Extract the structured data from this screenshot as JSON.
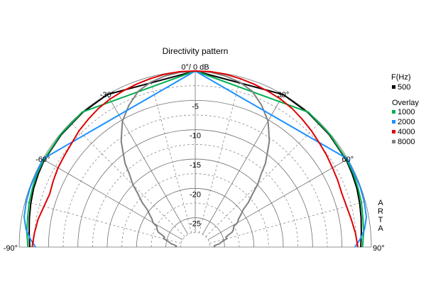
{
  "chart_data": {
    "type": "polar",
    "title": "Directivity pattern",
    "center_label": "0°/ 0 dB",
    "angle_range_deg": [
      -90,
      90
    ],
    "radial_range_db": [
      -30,
      0
    ],
    "angle_labels": [
      {
        "angle": -90,
        "text": "-90°"
      },
      {
        "angle": -60,
        "text": "-60°"
      },
      {
        "angle": -30,
        "text": "-30°"
      },
      {
        "angle": 30,
        "text": "30°"
      },
      {
        "angle": 60,
        "text": "60°"
      },
      {
        "angle": 90,
        "text": "90°"
      }
    ],
    "radial_labels": [
      {
        "db": -5,
        "text": "-5"
      },
      {
        "db": -10,
        "text": "-10"
      },
      {
        "db": -15,
        "text": "-15"
      },
      {
        "db": -20,
        "text": "-20"
      },
      {
        "db": -25,
        "text": "-25"
      }
    ],
    "legend": {
      "header": "F(Hz)",
      "overlay_label": "Overlay",
      "main": {
        "name": "500",
        "color": "#000000"
      },
      "overlays": [
        {
          "name": "1000",
          "color": "#00b050"
        },
        {
          "name": "2000",
          "color": "#1e90ff"
        },
        {
          "name": "4000",
          "color": "#e00000"
        },
        {
          "name": "8000",
          "color": "#808080"
        }
      ]
    },
    "watermark": [
      "A",
      "R",
      "T",
      "A"
    ],
    "series": [
      {
        "name": "500",
        "color": "#000000",
        "points": [
          [
            -90,
            -1.8
          ],
          [
            -85,
            -1.6
          ],
          [
            -80,
            -1.3
          ],
          [
            -75,
            -1.0
          ],
          [
            -70,
            -0.7
          ],
          [
            -65,
            -0.5
          ],
          [
            -60,
            -0.3
          ],
          [
            -50,
            -0.2
          ],
          [
            -40,
            -0.1
          ],
          [
            -30,
            0
          ],
          [
            0,
            0
          ],
          [
            30,
            0
          ],
          [
            40,
            -0.1
          ],
          [
            50,
            -0.2
          ],
          [
            60,
            -0.3
          ],
          [
            65,
            -0.5
          ],
          [
            70,
            -0.7
          ],
          [
            75,
            -1.0
          ],
          [
            80,
            -1.3
          ],
          [
            85,
            -1.6
          ],
          [
            90,
            -1.8
          ]
        ]
      },
      {
        "name": "1000",
        "color": "#00b050",
        "points": [
          [
            -90,
            -1.5
          ],
          [
            -85,
            -1.2
          ],
          [
            -80,
            -1.0
          ],
          [
            -75,
            -0.7
          ],
          [
            -70,
            -0.5
          ],
          [
            -65,
            -0.3
          ],
          [
            -60,
            -0.2
          ],
          [
            -50,
            -0.1
          ],
          [
            -40,
            0
          ],
          [
            0,
            0
          ],
          [
            40,
            0
          ],
          [
            50,
            -0.1
          ],
          [
            60,
            -0.2
          ],
          [
            65,
            -0.3
          ],
          [
            70,
            -0.5
          ],
          [
            75,
            -0.7
          ],
          [
            80,
            -1.0
          ],
          [
            85,
            -1.2
          ],
          [
            90,
            -1.5
          ]
        ]
      },
      {
        "name": "2000",
        "color": "#1e90ff",
        "points": [
          [
            -90,
            -2.8
          ],
          [
            -87,
            -1.8
          ],
          [
            -84,
            -1.0
          ],
          [
            -80,
            -0.4
          ],
          [
            -75,
            -0.2
          ],
          [
            -70,
            -0.1
          ],
          [
            -60,
            0
          ],
          [
            0,
            0
          ],
          [
            60,
            0
          ],
          [
            70,
            -0.1
          ],
          [
            75,
            -0.2
          ],
          [
            80,
            -0.4
          ],
          [
            84,
            -1.0
          ],
          [
            87,
            -1.8
          ],
          [
            90,
            -2.8
          ]
        ]
      },
      {
        "name": "4000",
        "color": "#e00000",
        "points": [
          [
            -90,
            -2.2
          ],
          [
            -85,
            -2.5
          ],
          [
            -80,
            -2.8
          ],
          [
            -75,
            -3.3
          ],
          [
            -70,
            -3.6
          ],
          [
            -65,
            -3.3
          ],
          [
            -60,
            -3.0
          ],
          [
            -55,
            -2.8
          ],
          [
            -50,
            -2.5
          ],
          [
            -45,
            -2.0
          ],
          [
            -40,
            -1.6
          ],
          [
            -35,
            -1.2
          ],
          [
            -30,
            -0.9
          ],
          [
            -25,
            -0.7
          ],
          [
            -20,
            -0.5
          ],
          [
            -15,
            -0.3
          ],
          [
            -10,
            -0.1
          ],
          [
            -5,
            0
          ],
          [
            0,
            0
          ],
          [
            5,
            0
          ],
          [
            10,
            -0.1
          ],
          [
            15,
            -0.3
          ],
          [
            20,
            -0.5
          ],
          [
            25,
            -0.7
          ],
          [
            30,
            -0.9
          ],
          [
            35,
            -1.2
          ],
          [
            40,
            -1.6
          ],
          [
            45,
            -2.0
          ],
          [
            50,
            -2.4
          ],
          [
            55,
            -2.7
          ],
          [
            60,
            -3.0
          ],
          [
            65,
            -3.2
          ],
          [
            70,
            -3.4
          ],
          [
            75,
            -3.3
          ],
          [
            80,
            -3.0
          ],
          [
            85,
            -2.6
          ],
          [
            90,
            -2.3
          ]
        ]
      },
      {
        "name": "8000",
        "color": "#808080",
        "points": [
          [
            -90,
            -26.6
          ],
          [
            -87,
            -26.8
          ],
          [
            -84,
            -26.4
          ],
          [
            -82,
            -25.8
          ],
          [
            -80,
            -25.6
          ],
          [
            -77,
            -25.0
          ],
          [
            -75,
            -24.4
          ],
          [
            -72,
            -24.5
          ],
          [
            -70,
            -24.0
          ],
          [
            -68,
            -23.2
          ],
          [
            -65,
            -22.8
          ],
          [
            -62,
            -22.6
          ],
          [
            -60,
            -21.7
          ],
          [
            -57,
            -21.2
          ],
          [
            -55,
            -20.6
          ],
          [
            -52,
            -19.6
          ],
          [
            -50,
            -18.2
          ],
          [
            -47,
            -16.6
          ],
          [
            -45,
            -15.0
          ],
          [
            -42,
            -13.2
          ],
          [
            -40,
            -11.4
          ],
          [
            -37,
            -9.5
          ],
          [
            -35,
            -8.0
          ],
          [
            -32,
            -6.4
          ],
          [
            -30,
            -5.2
          ],
          [
            -25,
            -3.3
          ],
          [
            -20,
            -1.7
          ],
          [
            -15,
            -0.9
          ],
          [
            -10,
            -0.4
          ],
          [
            -5,
            -0.1
          ],
          [
            0,
            0
          ],
          [
            5,
            -0.1
          ],
          [
            10,
            -0.4
          ],
          [
            15,
            -0.9
          ],
          [
            20,
            -1.7
          ],
          [
            25,
            -3.3
          ],
          [
            30,
            -5.2
          ],
          [
            32,
            -6.4
          ],
          [
            35,
            -8.0
          ],
          [
            37,
            -9.5
          ],
          [
            40,
            -11.4
          ],
          [
            42,
            -13.2
          ],
          [
            45,
            -15.0
          ],
          [
            47,
            -16.6
          ],
          [
            50,
            -18.2
          ],
          [
            52,
            -19.6
          ],
          [
            55,
            -20.6
          ],
          [
            57,
            -21.2
          ],
          [
            60,
            -21.7
          ],
          [
            62,
            -22.6
          ],
          [
            65,
            -22.8
          ],
          [
            68,
            -23.2
          ],
          [
            70,
            -24.0
          ],
          [
            72,
            -24.5
          ],
          [
            75,
            -24.4
          ],
          [
            77,
            -25.0
          ],
          [
            80,
            -25.6
          ],
          [
            82,
            -25.8
          ],
          [
            84,
            -26.4
          ],
          [
            87,
            -26.8
          ],
          [
            90,
            -26.6
          ]
        ]
      }
    ]
  }
}
